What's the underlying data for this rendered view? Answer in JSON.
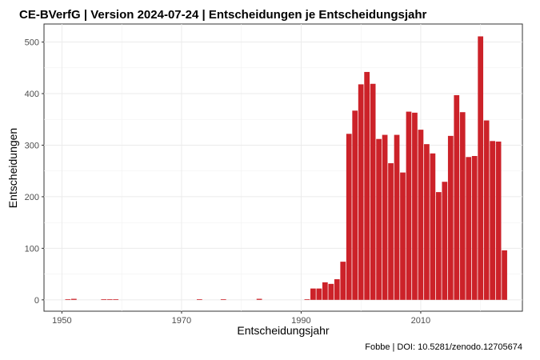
{
  "chart_data": {
    "type": "bar",
    "title": "CE-BVerfG | Version 2024-07-24 | Entscheidungen je Entscheidungsjahr",
    "xlabel": "Entscheidungsjahr",
    "ylabel": "Entscheidungen",
    "caption": "Fobbe | DOI: 10.5281/zenodo.12705674",
    "xlim": [
      1947,
      2027
    ],
    "ylim": [
      -22,
      535
    ],
    "x_ticks": [
      1950,
      1970,
      1990,
      2010
    ],
    "x_tick_labels": [
      "1950",
      "1970",
      "1990",
      "2010"
    ],
    "y_ticks": [
      0,
      100,
      200,
      300,
      400,
      500
    ],
    "y_tick_labels": [
      "0",
      "100",
      "200",
      "300",
      "400",
      "500"
    ],
    "grid": true,
    "bar_color": "#cc2229",
    "x": [
      1951,
      1952,
      1957,
      1958,
      1959,
      1973,
      1977,
      1983,
      1991,
      1992,
      1993,
      1994,
      1995,
      1996,
      1997,
      1998,
      1999,
      2000,
      2001,
      2002,
      2003,
      2004,
      2005,
      2006,
      2007,
      2008,
      2009,
      2010,
      2011,
      2012,
      2013,
      2014,
      2015,
      2016,
      2017,
      2018,
      2019,
      2020,
      2021,
      2022,
      2023,
      2024
    ],
    "values": [
      1,
      2,
      1,
      1,
      1,
      1,
      1,
      2,
      1,
      22,
      22,
      34,
      31,
      40,
      74,
      322,
      367,
      418,
      442,
      419,
      312,
      320,
      265,
      320,
      247,
      365,
      363,
      330,
      302,
      284,
      209,
      229,
      318,
      397,
      364,
      277,
      279,
      511,
      348,
      308,
      307,
      96
    ]
  }
}
